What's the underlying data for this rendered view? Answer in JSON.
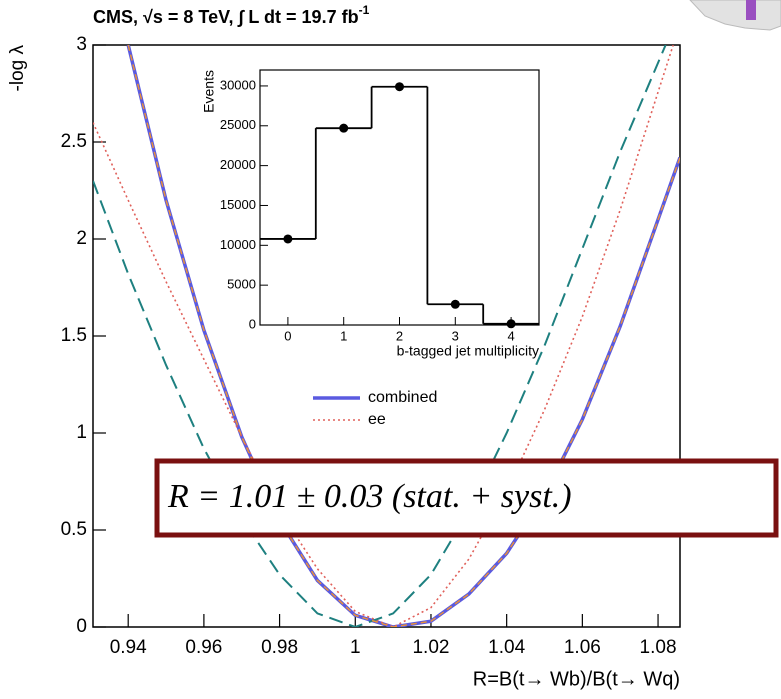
{
  "chart_data": [
    {
      "type": "line",
      "title": "CMS,  √s = 8 TeV,  ∫ L dt = 19.7 fb",
      "title_superscript": "-1",
      "x_label": "R=B(t→ Wb)/B(t→ Wq)",
      "y_label": "-log λ",
      "xlim": [
        0.9307,
        1.0858
      ],
      "ylim": [
        0,
        3
      ],
      "xticks": [
        0.94,
        0.96,
        0.98,
        1,
        1.02,
        1.04,
        1.06,
        1.08
      ],
      "yticks": [
        0,
        0.5,
        1,
        1.5,
        2,
        2.5,
        3
      ],
      "series": [
        {
          "name": "combined",
          "color": "#5a5ae0",
          "style": "solid",
          "x": [
            0.94,
            0.95,
            0.96,
            0.97,
            0.98,
            0.99,
            1.0,
            1.01,
            1.02,
            1.03,
            1.04,
            1.05,
            1.06,
            1.07,
            1.08,
            1.0858
          ],
          "values": [
            3.0,
            2.2,
            1.53,
            0.98,
            0.55,
            0.24,
            0.06,
            0.0,
            0.03,
            0.17,
            0.38,
            0.68,
            1.07,
            1.55,
            2.1,
            2.42
          ]
        },
        {
          "name": "ee",
          "color": "#e0605a",
          "style": "dotted",
          "x": [
            0.9307,
            0.94,
            0.95,
            0.96,
            0.97,
            0.98,
            0.99,
            1.0,
            1.01,
            1.02,
            1.03,
            1.04,
            1.05,
            1.06,
            1.07,
            1.084
          ],
          "values": [
            2.6,
            2.2,
            1.78,
            1.38,
            0.98,
            0.6,
            0.3,
            0.08,
            0.0,
            0.1,
            0.35,
            0.7,
            1.12,
            1.6,
            2.15,
            3.0
          ]
        },
        {
          "color": "#1e8080",
          "style": "dashed",
          "x": [
            0.9307,
            0.94,
            0.95,
            0.96,
            0.97,
            0.98,
            0.99,
            1.0,
            1.01,
            1.02,
            1.03,
            1.04,
            1.05,
            1.06,
            1.07,
            1.082
          ],
          "values": [
            2.3,
            1.82,
            1.35,
            0.92,
            0.56,
            0.27,
            0.07,
            0.0,
            0.07,
            0.27,
            0.6,
            1.0,
            1.45,
            1.95,
            2.45,
            3.0
          ]
        },
        {
          "color": "#e8903a",
          "style": "overlay",
          "x": [
            0.94,
            0.95,
            0.96,
            0.97,
            0.98,
            0.99,
            1.0,
            1.01,
            1.02,
            1.03,
            1.04,
            1.05,
            1.06,
            1.07,
            1.08,
            1.0858
          ],
          "values": [
            3.0,
            2.2,
            1.53,
            0.98,
            0.55,
            0.24,
            0.06,
            0.0,
            0.03,
            0.17,
            0.38,
            0.68,
            1.07,
            1.55,
            2.1,
            2.42
          ]
        }
      ],
      "annotation": "R = 1.01 ± 0.03 (stat. + syst.)"
    },
    {
      "type": "step",
      "x_label": "b-tagged jet multiplicity",
      "y_label": "Events",
      "xlim": [
        -0.5,
        4.5
      ],
      "ylim": [
        0,
        32000
      ],
      "xticks": [
        0,
        1,
        2,
        3,
        4
      ],
      "yticks": [
        0,
        5000,
        10000,
        15000,
        20000,
        25000,
        30000
      ],
      "x": [
        0,
        1,
        2,
        3,
        4
      ],
      "values": [
        10800,
        24700,
        29900,
        2600,
        150
      ],
      "color": "#000000"
    }
  ]
}
